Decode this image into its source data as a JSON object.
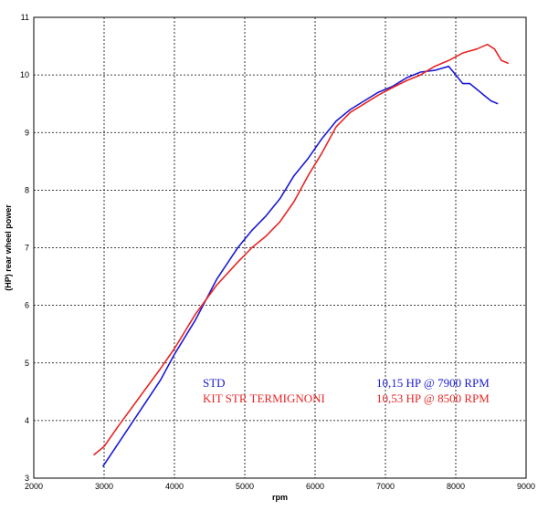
{
  "chart_data": {
    "type": "line",
    "xlabel": "rpm",
    "ylabel": "(HP) rear wheel power",
    "xlim": [
      2000,
      9000
    ],
    "ylim": [
      3,
      11
    ],
    "x_ticks": [
      2000,
      3000,
      4000,
      5000,
      6000,
      7000,
      8000,
      9000
    ],
    "y_ticks": [
      3,
      4,
      5,
      6,
      7,
      8,
      9,
      10,
      11
    ],
    "grid": true,
    "legend_position": "bottom-right",
    "series": [
      {
        "name": "STD",
        "annotation": "10,15 HP @ 7900 RPM",
        "color": "#1a1ad6",
        "x": [
          2980,
          3200,
          3500,
          3800,
          4000,
          4300,
          4600,
          4900,
          5100,
          5300,
          5500,
          5700,
          5900,
          6100,
          6300,
          6500,
          6700,
          6900,
          7100,
          7300,
          7500,
          7700,
          7900,
          8000,
          8100,
          8200,
          8300,
          8400,
          8500,
          8600
        ],
        "y": [
          3.2,
          3.6,
          4.15,
          4.7,
          5.15,
          5.75,
          6.45,
          7.0,
          7.3,
          7.55,
          7.85,
          8.25,
          8.55,
          8.9,
          9.2,
          9.4,
          9.55,
          9.7,
          9.8,
          9.95,
          10.05,
          10.08,
          10.15,
          10.0,
          9.85,
          9.85,
          9.75,
          9.65,
          9.55,
          9.5
        ]
      },
      {
        "name": "KIT STR TERMIGNONI",
        "annotation": "10,53 HP @ 8500 RPM",
        "color": "#e82525",
        "x": [
          2850,
          3000,
          3200,
          3500,
          3800,
          4000,
          4300,
          4600,
          4900,
          5100,
          5300,
          5500,
          5700,
          5900,
          6100,
          6300,
          6500,
          6700,
          6900,
          7100,
          7300,
          7500,
          7700,
          7900,
          8100,
          8300,
          8450,
          8550,
          8650,
          8750
        ],
        "y": [
          3.4,
          3.55,
          3.9,
          4.4,
          4.9,
          5.25,
          5.85,
          6.35,
          6.75,
          7.0,
          7.2,
          7.45,
          7.8,
          8.25,
          8.65,
          9.1,
          9.35,
          9.5,
          9.65,
          9.78,
          9.9,
          10.0,
          10.15,
          10.25,
          10.38,
          10.45,
          10.53,
          10.45,
          10.25,
          10.2
        ]
      }
    ]
  }
}
